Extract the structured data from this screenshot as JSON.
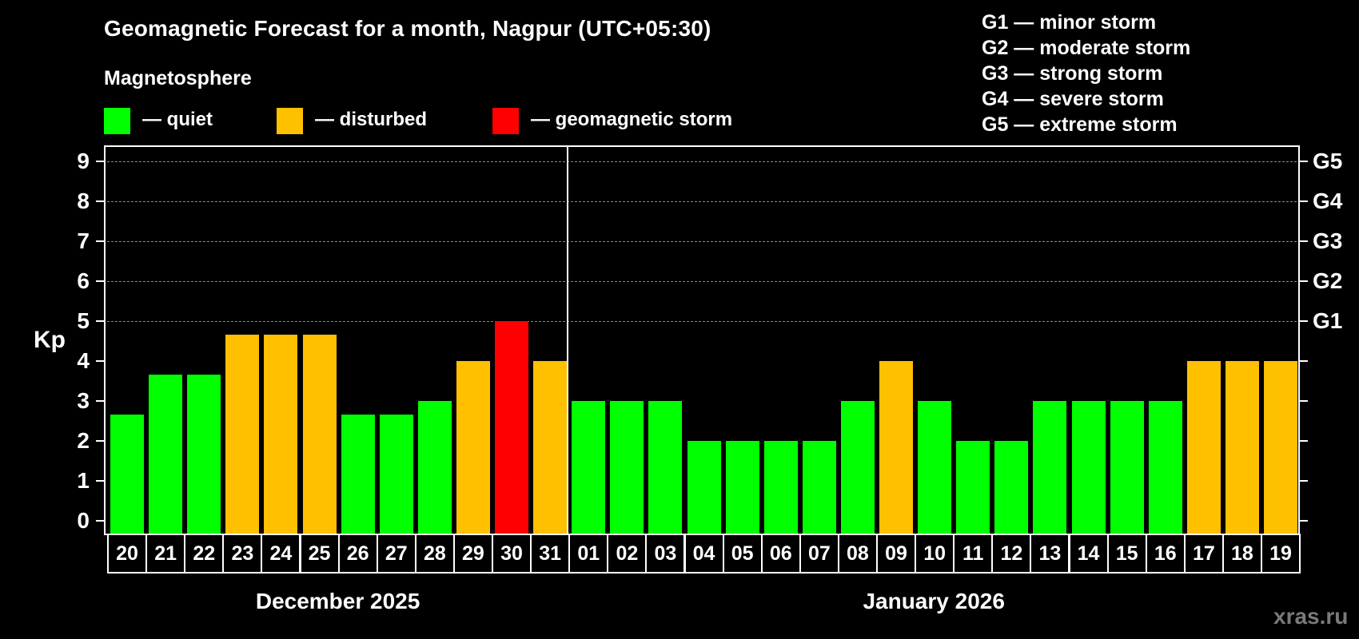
{
  "header": {
    "title": "Geomagnetic Forecast for a month, Nagpur (UTC+05:30)",
    "section": "Magnetosphere"
  },
  "legend": [
    {
      "label": "— quiet",
      "color": "#00ff00"
    },
    {
      "label": "— disturbed",
      "color": "#ffc000"
    },
    {
      "label": "— geomagnetic storm",
      "color": "#ff0000"
    }
  ],
  "storm_scale": [
    "G1 — minor storm",
    "G2 — moderate storm",
    "G3 — strong storm",
    "G4 — severe storm",
    "G5 — extreme storm"
  ],
  "axis": {
    "ylabel": "Kp",
    "yticks": [
      "0",
      "1",
      "2",
      "3",
      "4",
      "5",
      "6",
      "7",
      "8",
      "9"
    ],
    "gticks": [
      {
        "kp": 5,
        "label": "G1"
      },
      {
        "kp": 6,
        "label": "G2"
      },
      {
        "kp": 7,
        "label": "G3"
      },
      {
        "kp": 8,
        "label": "G4"
      },
      {
        "kp": 9,
        "label": "G5"
      }
    ]
  },
  "months": [
    {
      "label": "December 2025"
    },
    {
      "label": "January 2026"
    }
  ],
  "watermark": "xras.ru",
  "colors": {
    "quiet": "#00ff00",
    "disturbed": "#ffc000",
    "storm": "#ff0000"
  },
  "chart_data": {
    "type": "bar",
    "title": "Geomagnetic Forecast for a month, Nagpur (UTC+05:30)",
    "xlabel": "",
    "ylabel": "Kp",
    "ylim": [
      0,
      9
    ],
    "grid": true,
    "legend_position": "top",
    "categories": [
      "20",
      "21",
      "22",
      "23",
      "24",
      "25",
      "26",
      "27",
      "28",
      "29",
      "30",
      "31",
      "01",
      "02",
      "03",
      "04",
      "05",
      "06",
      "07",
      "08",
      "09",
      "10",
      "11",
      "12",
      "13",
      "14",
      "15",
      "16",
      "17",
      "18",
      "19"
    ],
    "category_groups": [
      {
        "label": "December 2025",
        "start": 0,
        "end": 11
      },
      {
        "label": "January 2026",
        "start": 12,
        "end": 30
      }
    ],
    "values": [
      2.67,
      3.67,
      3.67,
      4.67,
      4.67,
      4.67,
      2.67,
      2.67,
      3,
      4,
      5,
      4,
      3,
      3,
      3,
      2,
      2,
      2,
      2,
      3,
      4,
      3,
      2,
      2,
      3,
      3,
      3,
      3,
      4,
      4,
      4
    ],
    "status": [
      "quiet",
      "quiet",
      "quiet",
      "disturbed",
      "disturbed",
      "disturbed",
      "quiet",
      "quiet",
      "quiet",
      "disturbed",
      "storm",
      "disturbed",
      "quiet",
      "quiet",
      "quiet",
      "quiet",
      "quiet",
      "quiet",
      "quiet",
      "quiet",
      "disturbed",
      "quiet",
      "quiet",
      "quiet",
      "quiet",
      "quiet",
      "quiet",
      "quiet",
      "disturbed",
      "disturbed",
      "disturbed"
    ],
    "secondary_axis": {
      "5": "G1",
      "6": "G2",
      "7": "G3",
      "8": "G4",
      "9": "G5"
    }
  }
}
